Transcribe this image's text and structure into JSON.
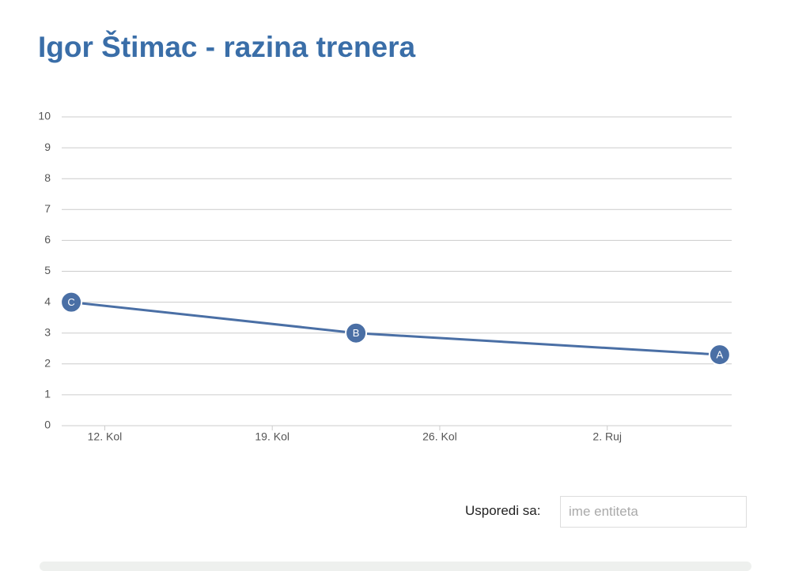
{
  "chart_data": {
    "type": "line",
    "title": "Igor Štimac - razina trenera",
    "x": [
      222.6,
      234.5,
      249.7
    ],
    "series": [
      {
        "color": "#4a6fa5",
        "values": [
          4,
          3,
          2.3
        ],
        "point_labels": [
          "C",
          "B",
          "A"
        ]
      }
    ],
    "xlim": [
      222.2,
      250.2
    ],
    "xticks": [
      {
        "value": 224,
        "label": "12. Kol"
      },
      {
        "value": 231,
        "label": "19. Kol"
      },
      {
        "value": 238,
        "label": "26. Kol"
      },
      {
        "value": 245,
        "label": "2. Ruj"
      }
    ],
    "ylim": [
      0,
      10
    ],
    "yticks": [
      0,
      1,
      2,
      3,
      4,
      5,
      6,
      7,
      8,
      9,
      10
    ],
    "grid": true
  },
  "compare": {
    "label": "Usporedi sa:",
    "placeholder": "ime entiteta"
  }
}
